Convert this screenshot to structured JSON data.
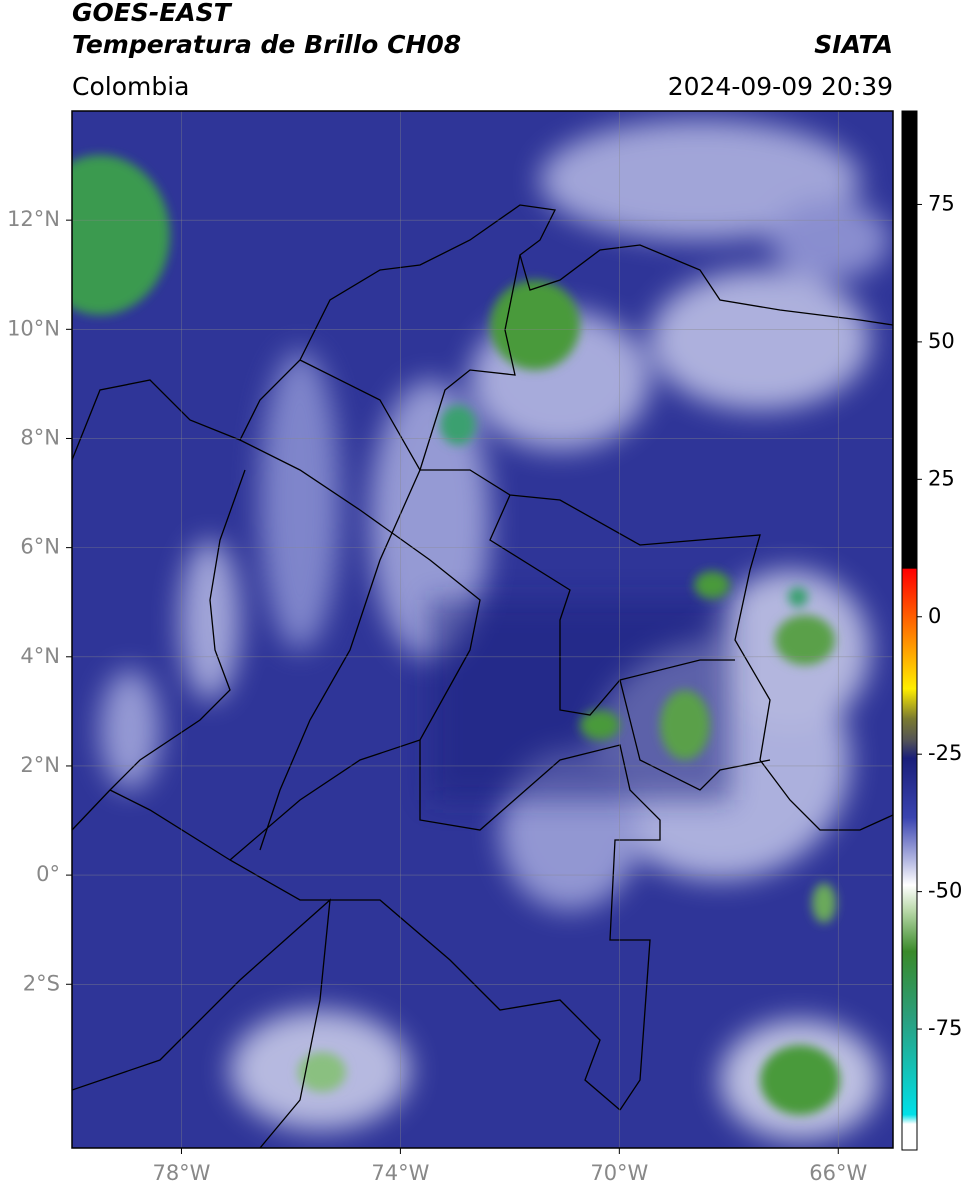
{
  "header": {
    "source": "GOES-EAST",
    "title": "Temperatura de Brillo CH08",
    "credit": "SIATA",
    "region": "Colombia",
    "timestamp": "2024-09-09 20:39"
  },
  "map": {
    "lon_range": [
      -80,
      -65
    ],
    "lat_range": [
      -5,
      14
    ],
    "lon_ticks": [
      {
        "value": -78,
        "label": "78°W"
      },
      {
        "value": -74,
        "label": "74°W"
      },
      {
        "value": -70,
        "label": "70°W"
      },
      {
        "value": -66,
        "label": "66°W"
      }
    ],
    "lat_ticks": [
      {
        "value": 12,
        "label": "12°N"
      },
      {
        "value": 10,
        "label": "10°N"
      },
      {
        "value": 8,
        "label": "8°N"
      },
      {
        "value": 6,
        "label": "6°N"
      },
      {
        "value": 4,
        "label": "4°N"
      },
      {
        "value": 2,
        "label": "2°N"
      },
      {
        "value": 0,
        "label": "0°"
      },
      {
        "value": -2,
        "label": "2°S"
      }
    ]
  },
  "colorbar": {
    "range": [
      -97,
      92
    ],
    "ticks": [
      75,
      50,
      25,
      0,
      -25,
      -50,
      -75
    ]
  }
}
